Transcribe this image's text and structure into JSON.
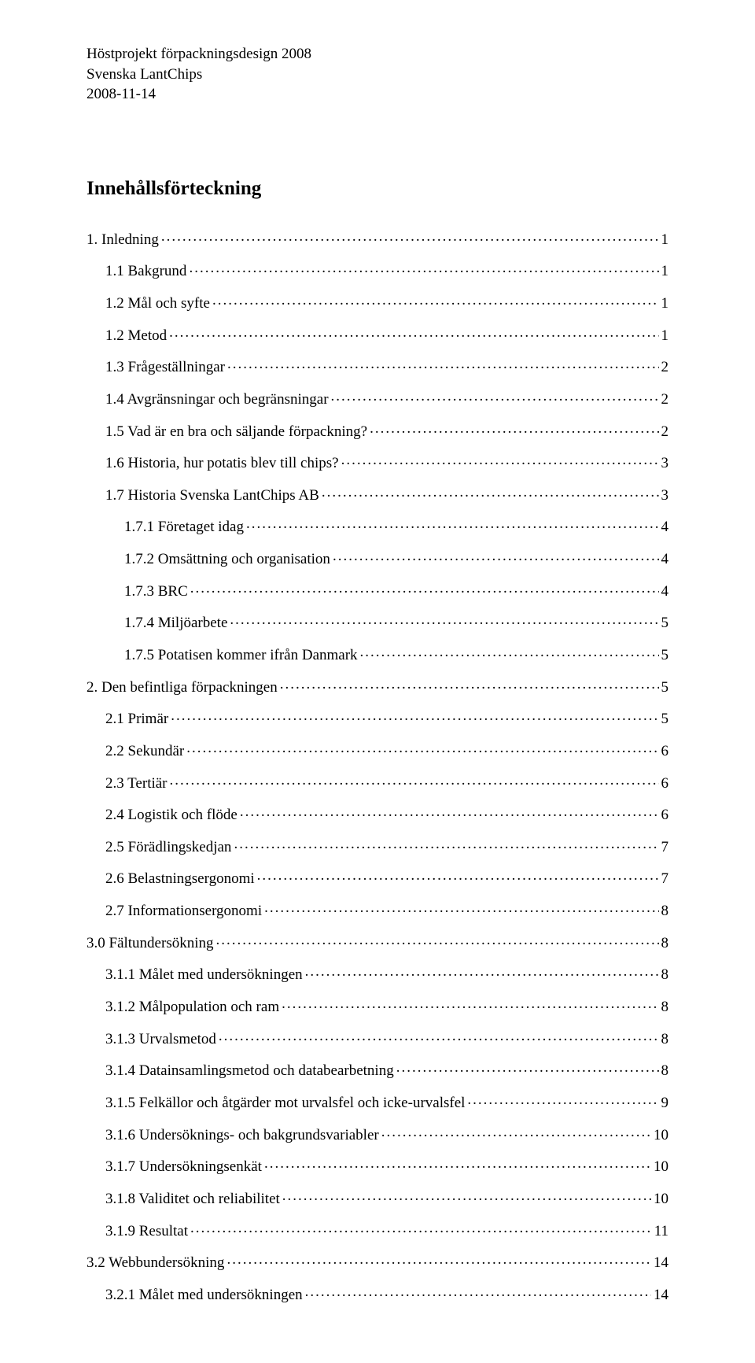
{
  "header": {
    "line1": "Höstprojekt förpackningsdesign 2008",
    "line2": "Svenska LantChips",
    "line3": "2008-11-14"
  },
  "title": "Innehållsförteckning",
  "toc": [
    {
      "label": "1. Inledning",
      "page": "1",
      "level": 0
    },
    {
      "label": "1.1 Bakgrund",
      "page": "1",
      "level": 1
    },
    {
      "label": "1.2 Mål och syfte",
      "page": "1",
      "level": 1
    },
    {
      "label": "1.2 Metod",
      "page": "1",
      "level": 1
    },
    {
      "label": "1.3 Frågeställningar",
      "page": "2",
      "level": 1
    },
    {
      "label": "1.4 Avgränsningar och begränsningar",
      "page": "2",
      "level": 1
    },
    {
      "label": "1.5 Vad är en bra och säljande förpackning?",
      "page": "2",
      "level": 1
    },
    {
      "label": "1.6 Historia, hur potatis blev till chips?",
      "page": "3",
      "level": 1
    },
    {
      "label": "1.7 Historia Svenska LantChips AB",
      "page": "3",
      "level": 1
    },
    {
      "label": "1.7.1 Företaget idag",
      "page": "4",
      "level": 2
    },
    {
      "label": "1.7.2 Omsättning och organisation",
      "page": "4",
      "level": 2
    },
    {
      "label": "1.7.3 BRC",
      "page": "4",
      "level": 2
    },
    {
      "label": "1.7.4 Miljöarbete",
      "page": "5",
      "level": 2
    },
    {
      "label": "1.7.5 Potatisen kommer ifrån Danmark",
      "page": "5",
      "level": 2
    },
    {
      "label": "2. Den befintliga förpackningen",
      "page": "5",
      "level": 0
    },
    {
      "label": "2.1 Primär",
      "page": "5",
      "level": 1
    },
    {
      "label": "2.2 Sekundär",
      "page": "6",
      "level": 1
    },
    {
      "label": "2.3 Tertiär",
      "page": "6",
      "level": 1
    },
    {
      "label": "2.4 Logistik och flöde",
      "page": "6",
      "level": 1
    },
    {
      "label": "2.5 Förädlingskedjan",
      "page": "7",
      "level": 1
    },
    {
      "label": "2.6 Belastningsergonomi",
      "page": "7",
      "level": 1
    },
    {
      "label": "2.7 Informationsergonomi",
      "page": "8",
      "level": 1
    },
    {
      "label": "3.0 Fältundersökning",
      "page": "8",
      "level": 0
    },
    {
      "label": "3.1.1 Målet med undersökningen",
      "page": "8",
      "level": 1
    },
    {
      "label": "3.1.2 Målpopulation och ram",
      "page": "8",
      "level": 1
    },
    {
      "label": "3.1.3 Urvalsmetod",
      "page": "8",
      "level": 1
    },
    {
      "label": "3.1.4 Datainsamlingsmetod och databearbetning",
      "page": "8",
      "level": 1
    },
    {
      "label": "3.1.5 Felkällor och åtgärder mot urvalsfel och icke-urvalsfel",
      "page": "9",
      "level": 1
    },
    {
      "label": "3.1.6 Undersöknings- och bakgrundsvariabler",
      "page": "10",
      "level": 1
    },
    {
      "label": "3.1.7 Undersökningsenkät",
      "page": "10",
      "level": 1
    },
    {
      "label": "3.1.8 Validitet och reliabilitet",
      "page": "10",
      "level": 1
    },
    {
      "label": "3.1.9 Resultat",
      "page": "11",
      "level": 1
    },
    {
      "label": "3.2 Webbundersökning",
      "page": "14",
      "level": 0
    },
    {
      "label": "3.2.1 Målet med undersökningen",
      "page": "14",
      "level": 1
    }
  ]
}
